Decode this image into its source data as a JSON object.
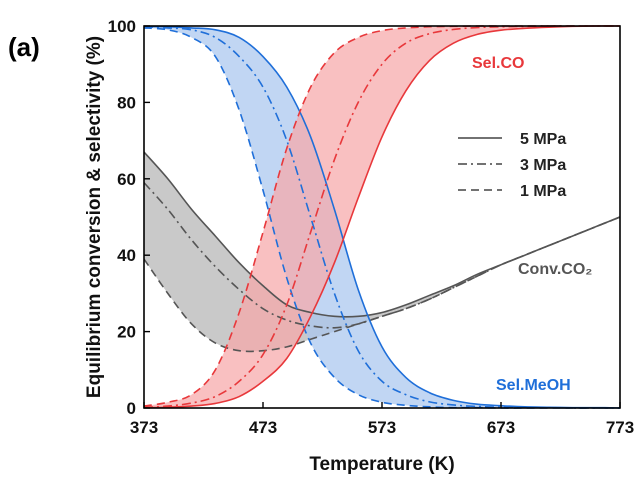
{
  "panel_label": "(a)",
  "chart_data": {
    "type": "line",
    "title": "",
    "xlabel": "Temperature (K)",
    "ylabel": "Equilibrium conversion & selectivity (%)",
    "xlim": [
      373,
      773
    ],
    "ylim": [
      0,
      100
    ],
    "xticks": [
      373,
      473,
      573,
      673,
      773
    ],
    "yticks": [
      0,
      20,
      40,
      60,
      80,
      100
    ],
    "grid": false,
    "legend": {
      "placement": "right-center",
      "entries": [
        {
          "label": "5 MPa",
          "style": "solid"
        },
        {
          "label": "3 MPa",
          "style": "dashdot"
        },
        {
          "label": "1 MPa",
          "style": "dashed"
        }
      ]
    },
    "annotations": [
      {
        "text": "Sel.CO",
        "color": "#e8383b"
      },
      {
        "text": "Conv.CO₂",
        "color": "#555555"
      },
      {
        "text": "Sel.MeOH",
        "color": "#1f6fd9"
      }
    ],
    "colors": {
      "co": "#e8383b",
      "meoh": "#1f6fd9",
      "conv": "#555555",
      "co_fill": "#f7a7a9",
      "meoh_fill": "#a9c6ef",
      "conv_fill": "#b4b4b4"
    },
    "x": [
      373,
      393,
      413,
      433,
      453,
      473,
      493,
      513,
      533,
      553,
      573,
      593,
      613,
      633,
      653,
      673,
      693,
      713,
      733,
      753,
      773
    ],
    "series": [
      {
        "group": "co",
        "pressure": "5 MPa",
        "style": "solid",
        "values": [
          0.1,
          0.2,
          0.5,
          1.2,
          3,
          7,
          13,
          24,
          38,
          55,
          71,
          83,
          91,
          95.5,
          97.8,
          98.9,
          99.4,
          99.7,
          99.9,
          100,
          100
        ]
      },
      {
        "group": "co",
        "pressure": "3 MPa",
        "style": "dashdot",
        "values": [
          0.2,
          0.5,
          1.3,
          3,
          7,
          14,
          27,
          46,
          65,
          80,
          90,
          95.5,
          98,
          99.1,
          99.6,
          99.8,
          99.9,
          100,
          100,
          100,
          100
        ]
      },
      {
        "group": "co",
        "pressure": "1 MPa",
        "style": "dashed",
        "values": [
          0.5,
          1.5,
          3.5,
          10,
          25,
          46,
          68,
          84,
          93,
          97,
          98.8,
          99.5,
          99.8,
          99.9,
          100,
          100,
          100,
          100,
          100,
          100,
          100
        ]
      },
      {
        "group": "meoh",
        "pressure": "5 MPa",
        "style": "solid",
        "values": [
          99.9,
          99.8,
          99.5,
          99,
          97,
          92,
          84,
          71,
          52,
          31,
          16,
          8,
          4,
          2,
          1,
          0.6,
          0.3,
          0.2,
          0.1,
          0.1,
          0
        ]
      },
      {
        "group": "meoh",
        "pressure": "3 MPa",
        "style": "dashdot",
        "values": [
          99.8,
          99.5,
          99,
          97,
          92,
          84,
          70,
          50,
          30,
          15,
          7,
          3.5,
          1.6,
          0.8,
          0.4,
          0.2,
          0.1,
          0.1,
          0,
          0,
          0
        ]
      },
      {
        "group": "meoh",
        "pressure": "1 MPa",
        "style": "dashed",
        "values": [
          99.5,
          99,
          97,
          92,
          78,
          57,
          34,
          17,
          8,
          3.5,
          1.5,
          0.7,
          0.3,
          0.1,
          0.1,
          0,
          0,
          0,
          0,
          0,
          0
        ]
      },
      {
        "group": "conv",
        "pressure": "5 MPa",
        "style": "solid",
        "values": [
          67,
          60,
          52,
          45,
          38,
          32,
          27,
          25,
          24,
          24,
          25,
          27,
          29.5,
          32,
          35,
          37.5,
          40,
          42.5,
          45,
          47.5,
          50
        ]
      },
      {
        "group": "conv",
        "pressure": "3 MPa",
        "style": "dashdot",
        "values": [
          59,
          52,
          44,
          37,
          31,
          26,
          23,
          21.5,
          21,
          22,
          24,
          26,
          28.5,
          31.5,
          34.5,
          37.5,
          40,
          42.5,
          45,
          47.5,
          50
        ]
      },
      {
        "group": "conv",
        "pressure": "1 MPa",
        "style": "dashed",
        "values": [
          39,
          30,
          22,
          17,
          15,
          15,
          16,
          18,
          20,
          22,
          24,
          26,
          28.5,
          31.5,
          34.5,
          37.5,
          40,
          42.5,
          45,
          47.5,
          50
        ]
      }
    ]
  }
}
